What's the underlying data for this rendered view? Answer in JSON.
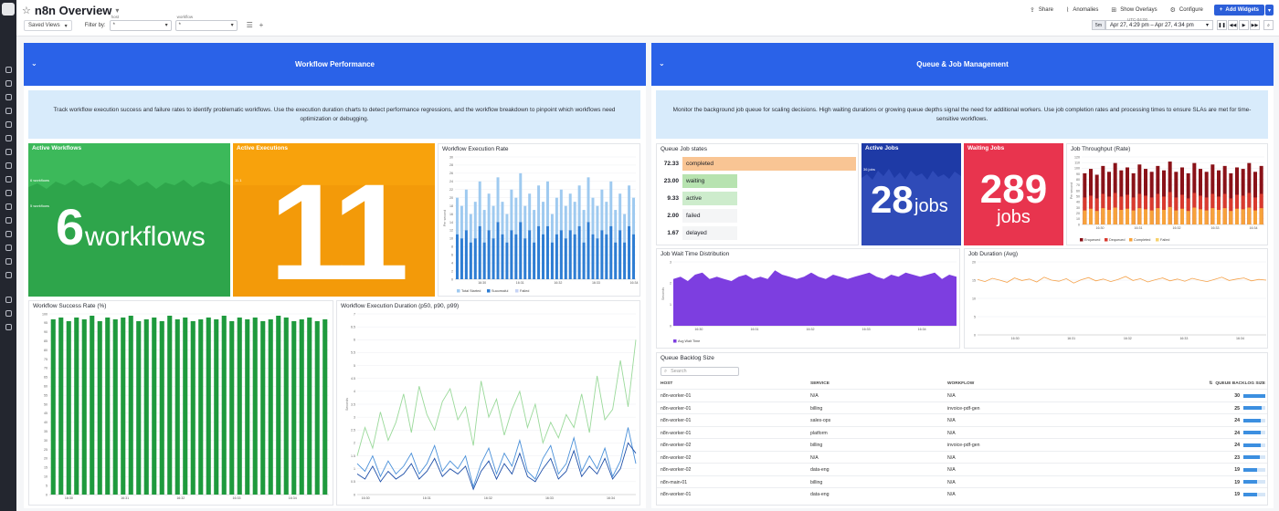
{
  "dashboard": {
    "title": "n8n Overview",
    "saved_views_label": "Saved Views",
    "filter_label": "Filter by:",
    "vars": [
      {
        "name": "host",
        "value": "*"
      },
      {
        "name": "workflow",
        "value": "*"
      }
    ],
    "actions": {
      "share": "Share",
      "anomalies": "Anomalies",
      "overlays": "Show Overlays",
      "configure": "Configure",
      "add_widgets": "Add Widgets"
    },
    "time": {
      "timezone": "UTC-04:00",
      "button": "5m",
      "range": "Apr 27, 4:29 pm – Apr 27, 4:34 pm"
    }
  },
  "groups": {
    "perf": {
      "title": "Workflow Performance",
      "note": "Track workflow execution success and failure rates to identify problematic workflows. Use the execution duration charts to detect performance regressions, and the workflow breakdown to pinpoint which workflows need optimization or debugging."
    },
    "queue": {
      "title": "Queue & Job Management",
      "note": "Monitor the background job queue for scaling decisions. High waiting durations or growing queue depths signal the need for additional workers. Use job completion rates and processing times to ensure SLAs are met for time-sensitive workflows."
    }
  },
  "widgets": {
    "active_workflows": {
      "title": "Active Workflows",
      "value": "6",
      "unit": "workflows",
      "color": "#3cb95a",
      "axis_top": "6 workflows",
      "axis_mid": "5 workflows"
    },
    "active_executions": {
      "title": "Active Executions",
      "value": "11",
      "color": "#f8a20c",
      "axis_top": "11.1"
    },
    "exec_rate": {
      "title": "Workflow Execution Rate",
      "ylabel": "Per second",
      "legend": [
        "Total Started",
        "Successful",
        "Failed"
      ]
    },
    "success_rate": {
      "title": "Workflow Success Rate (%)"
    },
    "exec_duration": {
      "title": "Workflow Execution Duration (p50, p90, p99)",
      "ylabel": "Seconds"
    },
    "job_states": {
      "title": "Queue Job states",
      "items": [
        {
          "value": "72.33",
          "label": "completed"
        },
        {
          "value": "23.00",
          "label": "waiting"
        },
        {
          "value": "9.33",
          "label": "active"
        },
        {
          "value": "2.00",
          "label": "failed"
        },
        {
          "value": "1.67",
          "label": "delayed"
        }
      ]
    },
    "active_jobs": {
      "title": "Active Jobs",
      "value": "28",
      "unit": "jobs",
      "color": "#1e3aa6",
      "axis_top": "36 jobs"
    },
    "waiting_jobs": {
      "title": "Waiting Jobs",
      "value": "289",
      "unit": "jobs",
      "color": "#e8344e"
    },
    "job_throughput": {
      "title": "Job Throughput (Rate)",
      "ylabel": "Per second",
      "legend": [
        "Enqueued",
        "Dequeued",
        "Completed",
        "Failed"
      ]
    },
    "wait_time": {
      "title": "Job Wait Time Distribution",
      "ylabel": "Seconds",
      "legend": [
        "Avg Wait Time"
      ]
    },
    "job_duration": {
      "title": "Job Duration (Avg)"
    },
    "backlog": {
      "title": "Queue Backlog Size",
      "search_placeholder": "Search",
      "columns": {
        "host": "HOST",
        "service": "SERVICE",
        "workflow": "WORKFLOW",
        "size": "QUEUE BACKLOG SIZE"
      },
      "rows": [
        {
          "host": "n8n-worker-01",
          "service": "N/A",
          "workflow": "N/A",
          "size": "30"
        },
        {
          "host": "n8n-worker-01",
          "service": "billing",
          "workflow": "invoice-pdf-gen",
          "size": "25"
        },
        {
          "host": "n8n-worker-01",
          "service": "sales-ops",
          "workflow": "N/A",
          "size": "24"
        },
        {
          "host": "n8n-worker-01",
          "service": "platform",
          "workflow": "N/A",
          "size": "24"
        },
        {
          "host": "n8n-worker-02",
          "service": "billing",
          "workflow": "invoice-pdf-gen",
          "size": "24"
        },
        {
          "host": "n8n-worker-02",
          "service": "N/A",
          "workflow": "N/A",
          "size": "23"
        },
        {
          "host": "n8n-worker-02",
          "service": "data-eng",
          "workflow": "N/A",
          "size": "19"
        },
        {
          "host": "n8n-main-01",
          "service": "billing",
          "workflow": "N/A",
          "size": "19"
        },
        {
          "host": "n8n-worker-01",
          "service": "data-eng",
          "workflow": "N/A",
          "size": "19"
        }
      ]
    }
  },
  "chart_data": [
    {
      "type": "bar",
      "title": "Workflow Execution Rate",
      "ylabel": "Per second",
      "ylim": [
        0,
        30
      ],
      "y_ticks": [
        0,
        2,
        4,
        6,
        8,
        10,
        12,
        14,
        16,
        18,
        20,
        22,
        24,
        26,
        28,
        30
      ],
      "x_ticks": [
        "16:30",
        "16:31",
        "16:32",
        "16:33",
        "16:34"
      ],
      "series": [
        {
          "name": "Total Started",
          "color": "#9fcaf0",
          "values": [
            20,
            18,
            22,
            16,
            19,
            24,
            17,
            21,
            18,
            25,
            19,
            16,
            22,
            20,
            26,
            18,
            21,
            17,
            23,
            19,
            24,
            16,
            20,
            22,
            18,
            21,
            19,
            23,
            17,
            25,
            20,
            18,
            22,
            19,
            24,
            17,
            21,
            16,
            23,
            20
          ]
        },
        {
          "name": "Successful",
          "color": "#2e7dd3",
          "values": [
            11,
            10,
            12,
            9,
            10,
            13,
            9,
            12,
            10,
            14,
            11,
            9,
            12,
            11,
            14,
            10,
            12,
            9,
            13,
            11,
            13,
            9,
            11,
            12,
            10,
            12,
            11,
            13,
            9,
            14,
            11,
            10,
            12,
            11,
            13,
            9,
            12,
            9,
            13,
            11
          ]
        },
        {
          "name": "Failed",
          "color": "#c7d3f5",
          "values": [
            0,
            0,
            0,
            0,
            0,
            0,
            0,
            0,
            0,
            0,
            0,
            0,
            0,
            0,
            0,
            0,
            0,
            0,
            0,
            0,
            0,
            0,
            0,
            0,
            0,
            0,
            0,
            0,
            0,
            0,
            0,
            0,
            0,
            0,
            0,
            0,
            0,
            0,
            0,
            0
          ]
        }
      ]
    },
    {
      "type": "bar",
      "title": "Workflow Success Rate (%)",
      "ylim": [
        0,
        100
      ],
      "y_ticks": [
        0,
        5,
        10,
        15,
        20,
        25,
        30,
        35,
        40,
        45,
        50,
        55,
        60,
        65,
        70,
        75,
        80,
        85,
        90,
        95,
        100
      ],
      "x_ticks": [
        "16:30",
        "16:31",
        "16:32",
        "16:33",
        "16:34"
      ],
      "series": [
        {
          "name": "",
          "color": "#1e9a3d",
          "values": [
            97,
            98,
            96,
            98,
            97,
            99,
            96,
            98,
            97,
            98,
            99,
            96,
            97,
            98,
            96,
            99,
            97,
            98,
            96,
            97,
            98,
            97,
            99,
            96,
            98,
            97,
            98,
            96,
            97,
            99,
            98,
            96,
            97,
            98,
            96,
            97
          ]
        }
      ]
    },
    {
      "type": "line",
      "title": "Workflow Execution Duration (p50, p90, p99)",
      "ylabel": "Seconds",
      "ylim": [
        0,
        7
      ],
      "y_ticks": [
        0,
        0.5,
        1,
        1.5,
        2,
        2.5,
        3,
        3.5,
        4,
        4.5,
        5,
        5.5,
        6,
        6.5,
        7
      ],
      "x_ticks": [
        "16:30",
        "16:31",
        "16:32",
        "16:33",
        "16:34"
      ],
      "series": [
        {
          "name": "p50",
          "color": "#4a90d9",
          "values": [
            1.2,
            0.9,
            1.5,
            0.7,
            1.3,
            0.8,
            1.1,
            1.6,
            0.8,
            1.2,
            1.9,
            0.9,
            1.3,
            1.0,
            1.5,
            0.3,
            1.2,
            1.8,
            0.8,
            1.6,
            1.1,
            2.1,
            0.9,
            0.6,
            1.4,
            1.9,
            0.8,
            1.2,
            2.2,
            0.9,
            1.5,
            1.0,
            1.8,
            0.7,
            1.3,
            2.6,
            1.2
          ]
        },
        {
          "name": "p90",
          "color": "#1e4fa8",
          "values": [
            0.8,
            0.6,
            1.1,
            0.5,
            0.9,
            0.6,
            0.8,
            1.2,
            0.6,
            0.9,
            1.4,
            0.7,
            1.0,
            0.8,
            1.1,
            0.2,
            0.9,
            1.3,
            0.6,
            1.2,
            0.8,
            1.6,
            0.7,
            0.5,
            1.0,
            1.4,
            0.6,
            0.9,
            1.7,
            0.7,
            1.1,
            0.8,
            1.4,
            0.6,
            1.0,
            2.0,
            1.6
          ]
        },
        {
          "name": "p99",
          "color": "#9ad99a",
          "values": [
            1.5,
            2.6,
            1.8,
            3.2,
            2.1,
            2.8,
            3.9,
            2.4,
            4.2,
            3.1,
            2.5,
            3.6,
            4.1,
            2.9,
            3.4,
            1.9,
            4.4,
            3.0,
            3.7,
            2.3,
            3.3,
            4.0,
            2.6,
            3.5,
            2.0,
            2.8,
            2.2,
            3.1,
            2.6,
            3.9,
            2.4,
            4.6,
            2.9,
            3.3,
            5.2,
            3.4,
            6.0
          ]
        }
      ]
    },
    {
      "type": "bar",
      "title": "Queue Job states",
      "categories": [
        "completed",
        "waiting",
        "active",
        "failed",
        "delayed"
      ],
      "values": [
        72.33,
        23.0,
        9.33,
        2.0,
        1.67
      ],
      "colors": [
        "#f9c594",
        "#b7e3b0",
        "#cdeccc",
        "#f4f5f6",
        "#f4f5f6"
      ]
    },
    {
      "type": "bar",
      "title": "Job Throughput (Rate)",
      "ylabel": "Per second",
      "ylim": [
        0,
        120
      ],
      "y_ticks": [
        0,
        10,
        20,
        30,
        40,
        50,
        60,
        70,
        80,
        90,
        100,
        110,
        120
      ],
      "x_ticks": [
        "16:30",
        "16:31",
        "16:32",
        "16:33",
        "16:34"
      ],
      "series": [
        {
          "name": "Enqueued",
          "color": "#8a1218",
          "values": [
            35,
            38,
            34,
            40,
            36,
            42,
            37,
            39,
            35,
            41,
            38,
            36,
            40,
            37,
            43,
            36,
            39,
            35,
            42,
            38,
            36,
            41,
            37,
            40,
            35,
            39,
            38,
            42,
            36,
            40
          ]
        },
        {
          "name": "Dequeued",
          "color": "#d93a2e",
          "values": [
            30,
            32,
            29,
            34,
            31,
            35,
            31,
            33,
            30,
            34,
            32,
            30,
            34,
            31,
            36,
            30,
            33,
            29,
            35,
            32,
            30,
            34,
            31,
            34,
            29,
            33,
            32,
            35,
            30,
            34
          ]
        },
        {
          "name": "Completed",
          "color": "#f7a23a",
          "values": [
            25,
            28,
            24,
            29,
            26,
            30,
            26,
            28,
            25,
            29,
            27,
            25,
            29,
            26,
            31,
            25,
            28,
            24,
            30,
            27,
            25,
            29,
            26,
            29,
            24,
            28,
            27,
            30,
            25,
            29
          ]
        },
        {
          "name": "Failed",
          "color": "#f7d26c",
          "values": [
            1,
            1,
            1,
            1,
            1,
            1,
            1,
            1,
            1,
            1,
            1,
            1,
            1,
            1,
            1,
            1,
            1,
            1,
            1,
            1,
            1,
            1,
            1,
            1,
            1,
            1,
            1,
            1,
            1,
            1
          ]
        }
      ]
    },
    {
      "type": "area",
      "title": "Job Wait Time Distribution",
      "ylabel": "Seconds",
      "ylim": [
        0,
        3
      ],
      "y_ticks": [
        0,
        1,
        2,
        3
      ],
      "x_ticks": [
        "16:30",
        "16:31",
        "16:32",
        "16:33",
        "16:34"
      ],
      "series": [
        {
          "name": "Avg Wait Time",
          "color": "#7d3ee0",
          "values": [
            2.2,
            2.3,
            2.1,
            2.4,
            2.5,
            2.2,
            2.3,
            2.2,
            2.1,
            2.3,
            2.4,
            2.2,
            2.3,
            2.2,
            2.6,
            2.4,
            2.3,
            2.2,
            2.3,
            2.5,
            2.3,
            2.2,
            2.4,
            2.3,
            2.2,
            2.3,
            2.4,
            2.5,
            2.3,
            2.2,
            2.4,
            2.3,
            2.5,
            2.4,
            2.3,
            2.4,
            2.5,
            2.2,
            2.4,
            2.3
          ]
        }
      ]
    },
    {
      "type": "line",
      "title": "Job Duration (Avg)",
      "ylim": [
        0,
        20
      ],
      "y_ticks": [
        0,
        5,
        10,
        15,
        20
      ],
      "x_ticks": [
        "16:30",
        "16:31",
        "16:32",
        "16:33",
        "16:34",
        "16:35"
      ],
      "series": [
        {
          "name": "",
          "color": "#f5a24b",
          "values": [
            15.2,
            14.6,
            15.5,
            15.0,
            14.4,
            15.6,
            14.9,
            15.3,
            14.5,
            15.8,
            15.0,
            14.7,
            15.4,
            14.2,
            15.1,
            15.7,
            14.8,
            15.3,
            14.6,
            15.2,
            16.0,
            14.9,
            15.4,
            14.5,
            15.1,
            15.6,
            14.8,
            15.3,
            14.7,
            15.5,
            15.0,
            14.6,
            15.2,
            15.8,
            14.9,
            15.3,
            15.6,
            14.8,
            15.2,
            15.0
          ]
        }
      ]
    }
  ]
}
